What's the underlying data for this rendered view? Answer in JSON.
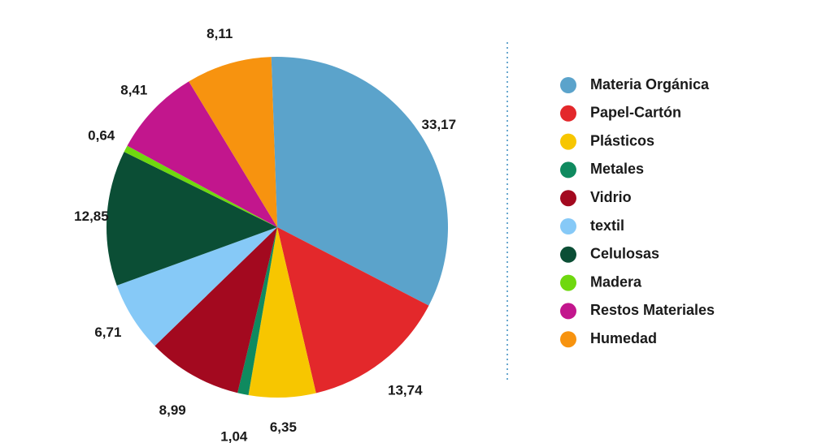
{
  "chart_data": {
    "type": "pie",
    "title": "",
    "slices": [
      {
        "label": "Materia Orgánica",
        "value": 33.17,
        "value_label": "33,17",
        "color": "#5ba3cb"
      },
      {
        "label": "Papel-Cartón",
        "value": 13.74,
        "value_label": "13,74",
        "color": "#e3282b"
      },
      {
        "label": "Plásticos",
        "value": 6.35,
        "value_label": "6,35",
        "color": "#f7c600"
      },
      {
        "label": "Metales",
        "value": 1.04,
        "value_label": "1,04",
        "color": "#0f8a5f"
      },
      {
        "label": "Vidrio",
        "value": 8.99,
        "value_label": "8,99",
        "color": "#a3091f"
      },
      {
        "label": "textil",
        "value": 6.71,
        "value_label": "6,71",
        "color": "#86c9f7"
      },
      {
        "label": "Celulosas",
        "value": 12.85,
        "value_label": "12,85",
        "color": "#0b4e35"
      },
      {
        "label": "Madera",
        "value": 0.64,
        "value_label": "0,64",
        "color": "#6fd80f"
      },
      {
        "label": "Restos Materiales",
        "value": 8.41,
        "value_label": "8,41",
        "color": "#c2168d"
      },
      {
        "label": "Humedad",
        "value": 8.11,
        "value_label": "8,11",
        "color": "#f7930f"
      }
    ],
    "legend_position": "right"
  }
}
